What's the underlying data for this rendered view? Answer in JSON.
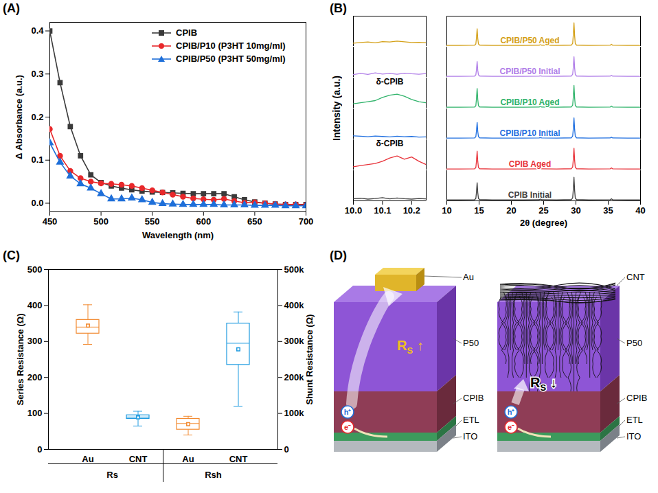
{
  "chart_data": [
    {
      "panel": "(A)",
      "type": "line",
      "x_label": "Wavelength (nm)",
      "y_label": "Δ Absorbance (a.u.)",
      "xlim": [
        450,
        700
      ],
      "xticks": [
        450,
        500,
        550,
        600,
        650,
        700
      ],
      "ylim": [
        -0.02,
        0.42
      ],
      "yticks": [
        {
          "value": 0,
          "label": "0.0"
        },
        0.1,
        0.2,
        0.3,
        0.4
      ],
      "legend": "top-right",
      "x": [
        450,
        460,
        470,
        480,
        490,
        500,
        510,
        520,
        530,
        540,
        550,
        560,
        570,
        580,
        590,
        600,
        610,
        620,
        630,
        640,
        650,
        660,
        670,
        680,
        690,
        700
      ],
      "series": [
        {
          "name": "CPIB",
          "color": "#3a3a3a",
          "marker": "square",
          "values": [
            0.4,
            0.28,
            0.178,
            0.11,
            0.066,
            0.048,
            0.04,
            0.035,
            0.031,
            0.028,
            0.026,
            0.025,
            0.024,
            0.023,
            0.022,
            0.022,
            0.022,
            0.022,
            0.015,
            0.008,
            0.003,
            0.0,
            -0.002,
            -0.003,
            -0.003,
            -0.003
          ]
        },
        {
          "name": "CPIB/P10 (P3HT 10mg/ml)",
          "color": "#e8282b",
          "marker": "circle",
          "values": [
            0.172,
            0.11,
            0.075,
            0.058,
            0.05,
            0.046,
            0.045,
            0.043,
            0.04,
            0.035,
            0.03,
            0.025,
            0.02,
            0.015,
            0.011,
            0.009,
            0.008,
            0.01,
            0.005,
            0.001,
            0.002,
            0.0,
            -0.002,
            -0.003,
            -0.003,
            -0.004
          ]
        },
        {
          "name": "CPIB/P50 (P3HT 50mg/ml)",
          "color": "#1e6fd9",
          "marker": "triangle",
          "values": [
            0.14,
            0.095,
            0.063,
            0.045,
            0.035,
            0.022,
            0.01,
            0.01,
            0.012,
            0.008,
            0.002,
            -0.001,
            -0.002,
            -0.003,
            -0.003,
            -0.003,
            -0.003,
            -0.004,
            -0.004,
            -0.004,
            -0.005,
            -0.005,
            -0.005,
            -0.006,
            -0.006,
            -0.006
          ]
        }
      ]
    },
    {
      "panel": "(B)",
      "type": "line",
      "x_label": "2θ (degree)",
      "y_label": "Intensity (a.u.)",
      "tick_labels": "x",
      "xlim": [
        10,
        40
      ],
      "xticks": [
        10,
        15,
        20,
        25,
        30,
        35,
        40
      ],
      "ylim": [
        0,
        100
      ],
      "x": [
        10,
        12,
        14.3,
        14.5,
        14.6,
        14.7,
        14.8,
        14.9,
        15.1,
        17,
        20,
        24.3,
        24.5,
        24.7,
        27,
        29.3,
        29.5,
        29.6,
        29.7,
        29.8,
        29.9,
        30.1,
        32,
        35.3,
        35.5,
        35.7,
        38,
        40
      ],
      "series": [
        {
          "name": "CPIB/P50 Aged",
          "color": "#d4a017",
          "values": [
            3,
            3,
            3.5,
            8,
            29,
            58,
            26,
            8,
            4,
            3,
            3,
            3.5,
            6,
            3.5,
            3,
            4,
            10,
            39,
            78,
            35,
            9,
            4,
            3,
            3.5,
            7,
            3.5,
            3,
            3
          ]
        },
        {
          "name": "CPIB/P50 Initial",
          "color": "#b07ee8",
          "values": [
            3,
            3,
            3.5,
            8,
            26,
            52,
            23,
            8,
            4,
            3,
            3,
            3.5,
            5,
            3.5,
            3,
            4,
            10,
            34,
            68,
            31,
            9,
            4,
            3,
            3.5,
            6,
            3.5,
            3,
            3
          ]
        },
        {
          "name": "CPIB/P10 Aged",
          "color": "#2fb36a",
          "values": [
            3,
            3,
            3.5,
            8,
            33,
            65,
            29,
            8,
            4,
            3,
            3,
            3.5,
            6,
            3.5,
            3,
            4,
            10,
            38,
            75,
            34,
            9,
            4,
            3,
            3.5,
            7,
            3.5,
            3,
            3
          ]
        },
        {
          "name": "CPIB/P10 Initial",
          "color": "#1f6fe0",
          "values": [
            3,
            3,
            3.5,
            8,
            28,
            55,
            25,
            8,
            4,
            3,
            3,
            3.5,
            5,
            3.5,
            3,
            4,
            10,
            35,
            70,
            32,
            9,
            4,
            3,
            3.5,
            6,
            3.5,
            3,
            3
          ]
        },
        {
          "name": "CPIB Aged",
          "color": "#e8333a",
          "values": [
            3,
            3,
            3.5,
            8,
            31,
            62,
            28,
            8,
            4,
            3,
            3,
            3.5,
            6,
            3.5,
            3,
            4,
            10,
            36,
            72,
            32,
            9,
            4,
            3,
            3.5,
            7,
            3.5,
            3,
            3
          ]
        },
        {
          "name": "CPIB Initial",
          "color": "#404040",
          "values": [
            3,
            3,
            3.5,
            8,
            30,
            60,
            27,
            8,
            4,
            3,
            3,
            3.5,
            6,
            3.5,
            3,
            4,
            10,
            39,
            78,
            35,
            9,
            4,
            3,
            3.5,
            7,
            3.5,
            3,
            3
          ]
        }
      ],
      "inset": {
        "xlim": [
          10,
          10.25
        ],
        "xticks": [
          {
            "value": 10,
            "label": "10.0"
          },
          10.1,
          10.2
        ],
        "ylim": [
          0,
          14
        ],
        "x": [
          10,
          10.025,
          10.05,
          10.075,
          10.1,
          10.125,
          10.15,
          10.175,
          10.2,
          10.225,
          10.25
        ],
        "series": [
          {
            "name": "CPIB/P50 Aged",
            "values": [
              1.5,
              1.8,
              2.0,
              1.6,
              2.2,
              2.0,
              2.4,
              2.1,
              1.8,
              1.9,
              1.7
            ]
          },
          {
            "name": "CPIB/P50 Initial",
            "values": [
              1.2,
              1.8,
              1.3,
              2.0,
              1.5,
              1.8,
              1.4,
              1.9,
              1.6,
              1.4,
              1.7
            ]
          },
          {
            "name": "CPIB/P10 Aged",
            "values": [
              2,
              2.5,
              3,
              3.5,
              5,
              6,
              6.5,
              5.5,
              4,
              3,
              2.5
            ]
          },
          {
            "name": "CPIB/P10 Initial",
            "values": [
              1.5,
              1.3,
              1.1,
              1.4,
              1.2,
              1.0,
              1.3,
              1.1,
              1.2,
              0.9,
              1.0
            ]
          },
          {
            "name": "CPIB Aged",
            "values": [
              1.5,
              2,
              2.5,
              3,
              4,
              5.5,
              6.5,
              5,
              6,
              4,
              2.5
            ]
          },
          {
            "name": "CPIB Initial",
            "values": [
              1,
              1.2,
              0.8,
              1.1,
              1.5,
              0.9,
              1.3,
              1.0,
              0.8,
              1.1,
              0.9
            ]
          }
        ],
        "annotations": [
          {
            "text": "δ-CPIB",
            "series": "CPIB/P10 Aged",
            "x": 10.125
          },
          {
            "text": "δ-CPIB",
            "series": "CPIB Aged",
            "x": 10.125
          }
        ]
      }
    },
    {
      "panel": "(C)",
      "type": "box",
      "categories": [
        "Au",
        "CNT",
        "Au",
        "CNT"
      ],
      "groups": [
        "Rs",
        "Rs",
        "Rsh",
        "Rsh"
      ],
      "colors": [
        "#f28a30",
        "#1e9be0",
        "#f28a30",
        "#1e9be0"
      ],
      "y_label": "Series Resistance (Ω)",
      "y2_label": "Shunt Resistance (Ω)",
      "ylim": [
        0,
        500
      ],
      "yticks": [
        0,
        100,
        200,
        300,
        400,
        500
      ],
      "y2lim": [
        0,
        500000
      ],
      "y2ticks": [
        0,
        {
          "value": 100000,
          "label": "100k"
        },
        {
          "value": 200000,
          "label": "200k"
        },
        {
          "value": 300000,
          "label": "300k"
        },
        {
          "value": 400000,
          "label": "400k"
        },
        {
          "value": 500000,
          "label": "500k"
        }
      ],
      "boxes": [
        {
          "axis": "y",
          "min": 292,
          "q1": 322,
          "median": 340,
          "q3": 360,
          "max": 402,
          "mean": 344
        },
        {
          "axis": "y",
          "min": 65,
          "q1": 85,
          "median": 90,
          "q3": 95,
          "max": 106,
          "mean": 89
        },
        {
          "axis": "y2",
          "min": 40000,
          "q1": 55000,
          "median": 72000,
          "q3": 85000,
          "max": 92000,
          "mean": 70000
        },
        {
          "axis": "y2",
          "min": 120000,
          "q1": 235000,
          "median": 295000,
          "q3": 350000,
          "max": 382000,
          "mean": 278000
        }
      ]
    }
  ],
  "diagram": {
    "panel": "(D)",
    "schematics": [
      {
        "electrode": "Au",
        "layers": [
          "P50",
          "CPIB",
          "ETL",
          "ITO"
        ],
        "carriers": [
          "h⁺",
          "e⁻"
        ],
        "resistance": "R",
        "resistance_subscript": "S",
        "trend": "↑",
        "color": "#f0c020"
      },
      {
        "electrode": "CNT",
        "layers": [
          "P50",
          "CPIB",
          "ETL",
          "ITO"
        ],
        "carriers": [
          "h⁺",
          "e⁻"
        ],
        "resistance": "R",
        "resistance_subscript": "S",
        "trend": "↓",
        "color": "#000000"
      }
    ]
  }
}
